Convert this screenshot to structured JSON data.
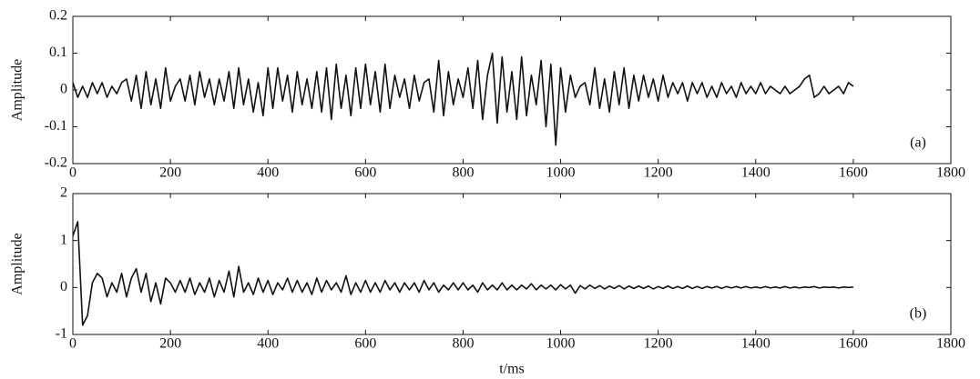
{
  "chart_data": [
    {
      "type": "line",
      "ylabel": "Amplitude",
      "annotation": "(a)",
      "x": [
        0,
        10,
        20,
        30,
        40,
        50,
        60,
        70,
        80,
        90,
        100,
        110,
        120,
        130,
        140,
        150,
        160,
        170,
        180,
        190,
        200,
        210,
        220,
        230,
        240,
        250,
        260,
        270,
        280,
        290,
        300,
        310,
        320,
        330,
        340,
        350,
        360,
        370,
        380,
        390,
        400,
        410,
        420,
        430,
        440,
        450,
        460,
        470,
        480,
        490,
        500,
        510,
        520,
        530,
        540,
        550,
        560,
        570,
        580,
        590,
        600,
        610,
        620,
        630,
        640,
        650,
        660,
        670,
        680,
        690,
        700,
        710,
        720,
        730,
        740,
        750,
        760,
        770,
        780,
        790,
        800,
        810,
        820,
        830,
        840,
        850,
        860,
        870,
        880,
        890,
        900,
        910,
        920,
        930,
        940,
        950,
        960,
        970,
        980,
        990,
        1000,
        1010,
        1020,
        1030,
        1040,
        1050,
        1060,
        1070,
        1080,
        1090,
        1100,
        1110,
        1120,
        1130,
        1140,
        1150,
        1160,
        1170,
        1180,
        1190,
        1200,
        1210,
        1220,
        1230,
        1240,
        1250,
        1260,
        1270,
        1280,
        1290,
        1300,
        1310,
        1320,
        1330,
        1340,
        1350,
        1360,
        1370,
        1380,
        1390,
        1400,
        1410,
        1420,
        1430,
        1440,
        1450,
        1460,
        1470,
        1480,
        1490,
        1500,
        1510,
        1520,
        1530,
        1540,
        1550,
        1560,
        1570,
        1580,
        1590,
        1600
      ],
      "series": [
        {
          "color": "#111111",
          "values": [
            0.02,
            -0.02,
            0.01,
            -0.02,
            0.02,
            -0.01,
            0.02,
            -0.02,
            0.01,
            -0.01,
            0.02,
            0.03,
            -0.03,
            0.04,
            -0.05,
            0.05,
            -0.04,
            0.03,
            -0.05,
            0.06,
            -0.03,
            0.01,
            0.03,
            -0.03,
            0.04,
            -0.04,
            0.05,
            -0.02,
            0.03,
            -0.04,
            0.03,
            -0.03,
            0.05,
            -0.05,
            0.06,
            -0.04,
            0.03,
            -0.06,
            0.02,
            -0.07,
            0.06,
            -0.05,
            0.06,
            -0.03,
            0.04,
            -0.06,
            0.05,
            -0.04,
            0.03,
            -0.05,
            0.05,
            -0.06,
            0.06,
            -0.08,
            0.07,
            -0.05,
            0.04,
            -0.07,
            0.06,
            -0.05,
            0.07,
            -0.04,
            0.05,
            -0.06,
            0.07,
            -0.05,
            0.04,
            -0.02,
            0.03,
            -0.05,
            0.04,
            -0.03,
            0.02,
            0.03,
            -0.06,
            0.08,
            -0.07,
            0.05,
            -0.04,
            0.03,
            -0.02,
            0.06,
            -0.05,
            0.08,
            -0.08,
            0.04,
            0.1,
            -0.09,
            0.09,
            -0.06,
            0.05,
            -0.08,
            0.09,
            -0.07,
            0.04,
            -0.04,
            0.08,
            -0.1,
            0.07,
            -0.15,
            0.06,
            -0.06,
            0.04,
            -0.02,
            0.01,
            0.02,
            -0.04,
            0.06,
            -0.05,
            0.03,
            -0.06,
            0.05,
            -0.04,
            0.06,
            -0.05,
            0.04,
            -0.03,
            0.04,
            -0.02,
            0.03,
            -0.03,
            0.04,
            -0.02,
            0.02,
            -0.01,
            0.02,
            -0.03,
            0.02,
            -0.01,
            0.02,
            -0.02,
            0.01,
            -0.02,
            0.02,
            -0.01,
            0.01,
            -0.02,
            0.02,
            -0.01,
            0.01,
            -0.01,
            0.02,
            -0.01,
            0.01,
            0.0,
            -0.01,
            0.01,
            -0.01,
            0.0,
            0.01,
            0.03,
            0.04,
            -0.02,
            -0.01,
            0.01,
            -0.01,
            0.0,
            0.01,
            -0.01,
            0.02,
            0.01
          ]
        }
      ],
      "xlim": [
        0,
        1800
      ],
      "ylim": [
        -0.2,
        0.2
      ],
      "xticks": [
        0,
        200,
        400,
        600,
        800,
        1000,
        1200,
        1400,
        1600,
        1800
      ],
      "yticks": [
        -0.2,
        -0.1,
        0,
        0.1,
        0.2
      ]
    },
    {
      "type": "line",
      "ylabel": "Amplitude",
      "annotation": "(b)",
      "xlabel": "t/ms",
      "x": [
        0,
        10,
        20,
        30,
        40,
        50,
        60,
        70,
        80,
        90,
        100,
        110,
        120,
        130,
        140,
        150,
        160,
        170,
        180,
        190,
        200,
        210,
        220,
        230,
        240,
        250,
        260,
        270,
        280,
        290,
        300,
        310,
        320,
        330,
        340,
        350,
        360,
        370,
        380,
        390,
        400,
        410,
        420,
        430,
        440,
        450,
        460,
        470,
        480,
        490,
        500,
        510,
        520,
        530,
        540,
        550,
        560,
        570,
        580,
        590,
        600,
        610,
        620,
        630,
        640,
        650,
        660,
        670,
        680,
        690,
        700,
        710,
        720,
        730,
        740,
        750,
        760,
        770,
        780,
        790,
        800,
        810,
        820,
        830,
        840,
        850,
        860,
        870,
        880,
        890,
        900,
        910,
        920,
        930,
        940,
        950,
        960,
        970,
        980,
        990,
        1000,
        1010,
        1020,
        1030,
        1040,
        1050,
        1060,
        1070,
        1080,
        1090,
        1100,
        1110,
        1120,
        1130,
        1140,
        1150,
        1160,
        1170,
        1180,
        1190,
        1200,
        1210,
        1220,
        1230,
        1240,
        1250,
        1260,
        1270,
        1280,
        1290,
        1300,
        1310,
        1320,
        1330,
        1340,
        1350,
        1360,
        1370,
        1380,
        1390,
        1400,
        1410,
        1420,
        1430,
        1440,
        1450,
        1460,
        1470,
        1480,
        1490,
        1500,
        1510,
        1520,
        1530,
        1540,
        1550,
        1560,
        1570,
        1580,
        1590,
        1600
      ],
      "series": [
        {
          "color": "#111111",
          "values": [
            1.1,
            1.4,
            -0.8,
            -0.6,
            0.1,
            0.3,
            0.2,
            -0.2,
            0.1,
            -0.1,
            0.3,
            -0.2,
            0.2,
            0.4,
            -0.1,
            0.3,
            -0.3,
            0.1,
            -0.35,
            0.2,
            0.1,
            -0.1,
            0.15,
            -0.1,
            0.2,
            -0.15,
            0.1,
            -0.1,
            0.2,
            -0.2,
            0.15,
            -0.1,
            0.35,
            -0.2,
            0.45,
            -0.1,
            0.1,
            -0.15,
            0.2,
            -0.1,
            0.15,
            -0.15,
            0.1,
            -0.05,
            0.2,
            -0.1,
            0.15,
            -0.1,
            0.1,
            -0.15,
            0.2,
            -0.1,
            0.15,
            -0.05,
            0.1,
            -0.1,
            0.25,
            -0.15,
            0.1,
            -0.1,
            0.15,
            -0.1,
            0.1,
            -0.1,
            0.15,
            -0.05,
            0.1,
            -0.1,
            0.1,
            -0.05,
            0.1,
            -0.1,
            0.15,
            -0.05,
            0.1,
            -0.1,
            0.05,
            -0.05,
            0.1,
            -0.05,
            0.1,
            -0.05,
            0.05,
            -0.1,
            0.1,
            -0.05,
            0.05,
            -0.05,
            0.1,
            -0.05,
            0.05,
            -0.05,
            0.05,
            -0.03,
            0.08,
            -0.05,
            0.05,
            -0.03,
            0.05,
            -0.05,
            0.06,
            -0.03,
            0.05,
            -0.12,
            0.04,
            -0.03,
            0.05,
            -0.02,
            0.04,
            -0.03,
            0.03,
            -0.02,
            0.04,
            -0.03,
            0.03,
            -0.02,
            0.03,
            -0.02,
            0.03,
            -0.03,
            0.02,
            -0.02,
            0.03,
            -0.02,
            0.02,
            -0.02,
            0.03,
            -0.02,
            0.02,
            -0.02,
            0.02,
            -0.01,
            0.02,
            -0.02,
            0.02,
            -0.01,
            0.02,
            -0.01,
            0.02,
            -0.01,
            0.01,
            -0.01,
            0.02,
            -0.01,
            0.01,
            -0.01,
            0.02,
            -0.01,
            0.01,
            -0.01,
            0.01,
            0.0,
            0.02,
            -0.01,
            0.01,
            0.0,
            0.01,
            -0.01,
            0.01,
            0.0,
            0.01
          ]
        }
      ],
      "xlim": [
        0,
        1800
      ],
      "ylim": [
        -1,
        2
      ],
      "xticks": [
        0,
        200,
        400,
        600,
        800,
        1000,
        1200,
        1400,
        1600,
        1800
      ],
      "yticks": [
        -1,
        0,
        1,
        2
      ]
    }
  ]
}
